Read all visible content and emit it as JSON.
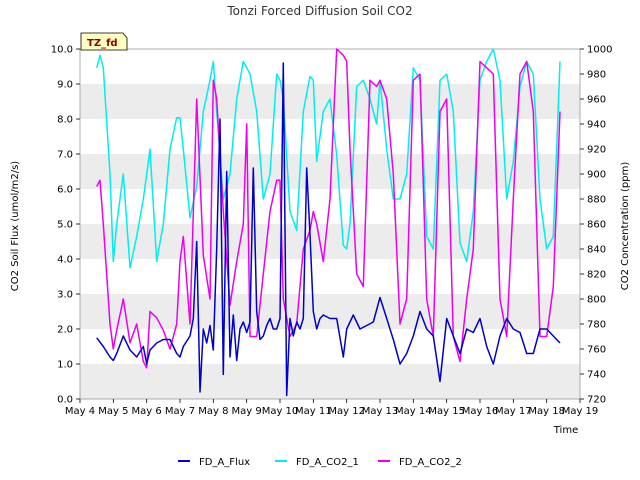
{
  "chart_data": {
    "type": "line",
    "title": "Tonzi Forced Diffusion Soil CO2",
    "xlabel": "Time",
    "ylabel_left": "CO2 Soil Flux (umol/m2/s)",
    "ylabel_right": "CO2 Concentration (ppm)",
    "annotation": "TZ_fd",
    "x_ticks": [
      "May 4",
      "May 5",
      "May 6",
      "May 7",
      "May 8",
      "May 9",
      "May 10",
      "May 11",
      "May 12",
      "May 13",
      "May 14",
      "May 15",
      "May 16",
      "May 17",
      "May 18",
      "May 19"
    ],
    "y_left_ticks": [
      "0.0",
      "1.0",
      "2.0",
      "3.0",
      "4.0",
      "5.0",
      "6.0",
      "7.0",
      "8.0",
      "9.0",
      "10.0"
    ],
    "y_right_ticks": [
      "720",
      "740",
      "760",
      "780",
      "800",
      "820",
      "840",
      "860",
      "880",
      "900",
      "920",
      "940",
      "960",
      "980",
      "1000"
    ],
    "ylim_left": [
      0,
      10
    ],
    "ylim_right": [
      720,
      1000
    ],
    "grid": "horizontal bands",
    "legend_position": "bottom-center",
    "series": [
      {
        "name": "FD_A_Flux",
        "axis": "left",
        "color": "#0000cc",
        "x": [
          4.5,
          4.7,
          4.9,
          5.0,
          5.1,
          5.3,
          5.5,
          5.7,
          5.9,
          6.0,
          6.1,
          6.3,
          6.5,
          6.7,
          6.9,
          7.0,
          7.1,
          7.3,
          7.4,
          7.5,
          7.6,
          7.7,
          7.8,
          7.9,
          8.0,
          8.1,
          8.2,
          8.3,
          8.4,
          8.5,
          8.6,
          8.7,
          8.8,
          8.9,
          9.0,
          9.1,
          9.2,
          9.3,
          9.4,
          9.5,
          9.6,
          9.7,
          9.8,
          9.9,
          10.0,
          10.1,
          10.2,
          10.3,
          10.4,
          10.5,
          10.6,
          10.7,
          10.8,
          10.9,
          11.0,
          11.1,
          11.2,
          11.3,
          11.5,
          11.7,
          11.9,
          12.0,
          12.2,
          12.4,
          12.6,
          12.8,
          13.0,
          13.2,
          13.4,
          13.6,
          13.8,
          14.0,
          14.2,
          14.4,
          14.6,
          14.8,
          15.0,
          15.2,
          15.4,
          15.6,
          15.8,
          16.0,
          16.2,
          16.4,
          16.6,
          16.8,
          17.0,
          17.2,
          17.4,
          17.6,
          17.8,
          18.0,
          18.2,
          18.4
        ],
        "y": [
          1.75,
          1.5,
          1.2,
          1.1,
          1.3,
          1.8,
          1.4,
          1.2,
          1.5,
          1.0,
          1.4,
          1.6,
          1.7,
          1.7,
          1.3,
          1.2,
          1.5,
          1.8,
          2.3,
          4.5,
          0.2,
          2.0,
          1.6,
          2.1,
          1.4,
          4.3,
          8.0,
          0.7,
          6.5,
          1.2,
          2.4,
          1.1,
          2.0,
          2.2,
          1.9,
          2.2,
          6.6,
          2.5,
          1.7,
          1.8,
          2.1,
          2.3,
          2.0,
          2.0,
          2.3,
          9.6,
          0.1,
          2.3,
          1.8,
          2.2,
          2.0,
          2.3,
          6.6,
          4.7,
          2.5,
          2.0,
          2.3,
          2.4,
          2.3,
          2.3,
          1.2,
          2.0,
          2.4,
          2.0,
          2.1,
          2.2,
          2.9,
          2.3,
          1.7,
          1.0,
          1.3,
          1.8,
          2.5,
          2.0,
          1.8,
          0.5,
          2.3,
          1.8,
          1.3,
          2.0,
          1.9,
          2.3,
          1.5,
          1.0,
          1.8,
          2.3,
          2.0,
          1.9,
          1.3,
          1.3,
          2.0,
          2.0,
          1.8,
          1.6
        ]
      },
      {
        "name": "FD_A_CO2_1",
        "axis": "right",
        "color": "#00eeee",
        "x": [
          4.5,
          4.6,
          4.7,
          4.9,
          5.0,
          5.1,
          5.3,
          5.5,
          5.7,
          5.9,
          6.0,
          6.1,
          6.3,
          6.5,
          6.7,
          6.9,
          7.0,
          7.1,
          7.3,
          7.5,
          7.7,
          7.9,
          8.0,
          8.1,
          8.3,
          8.5,
          8.7,
          8.9,
          9.0,
          9.1,
          9.3,
          9.5,
          9.7,
          9.9,
          10.0,
          10.1,
          10.3,
          10.5,
          10.7,
          10.9,
          11.0,
          11.1,
          11.3,
          11.5,
          11.7,
          11.9,
          12.0,
          12.1,
          12.3,
          12.5,
          12.7,
          12.9,
          13.0,
          13.2,
          13.4,
          13.6,
          13.8,
          14.0,
          14.2,
          14.4,
          14.6,
          14.8,
          15.0,
          15.2,
          15.4,
          15.6,
          15.8,
          16.0,
          16.2,
          16.4,
          16.6,
          16.8,
          17.0,
          17.2,
          17.4,
          17.6,
          17.8,
          18.0,
          18.2,
          18.4
        ],
        "y": [
          985,
          995,
          985,
          900,
          830,
          860,
          900,
          825,
          850,
          880,
          900,
          920,
          830,
          860,
          920,
          945,
          945,
          920,
          865,
          890,
          950,
          975,
          990,
          950,
          880,
          900,
          960,
          990,
          985,
          980,
          950,
          880,
          900,
          980,
          975,
          960,
          870,
          855,
          950,
          978,
          975,
          910,
          950,
          960,
          915,
          843,
          840,
          860,
          970,
          975,
          960,
          940,
          975,
          920,
          880,
          880,
          900,
          985,
          975,
          850,
          840,
          975,
          980,
          950,
          845,
          830,
          870,
          975,
          990,
          1000,
          975,
          880,
          910,
          970,
          990,
          980,
          880,
          840,
          850,
          990
        ]
      },
      {
        "name": "FD_A_CO2_2",
        "axis": "right",
        "color": "#ee00ee",
        "x": [
          4.5,
          4.6,
          4.7,
          4.9,
          5.0,
          5.1,
          5.3,
          5.5,
          5.7,
          5.9,
          6.0,
          6.1,
          6.3,
          6.5,
          6.7,
          6.9,
          7.0,
          7.1,
          7.3,
          7.5,
          7.7,
          7.9,
          8.0,
          8.1,
          8.3,
          8.5,
          8.7,
          8.9,
          9.0,
          9.1,
          9.3,
          9.5,
          9.7,
          9.9,
          10.0,
          10.1,
          10.3,
          10.5,
          10.7,
          10.9,
          11.0,
          11.1,
          11.3,
          11.5,
          11.7,
          11.9,
          12.0,
          12.1,
          12.3,
          12.5,
          12.7,
          12.9,
          13.0,
          13.2,
          13.4,
          13.6,
          13.8,
          14.0,
          14.2,
          14.4,
          14.6,
          14.8,
          15.0,
          15.2,
          15.4,
          15.6,
          15.8,
          16.0,
          16.2,
          16.4,
          16.6,
          16.8,
          17.0,
          17.2,
          17.4,
          17.6,
          17.8,
          18.0,
          18.2,
          18.4
        ],
        "y": [
          890,
          895,
          860,
          780,
          760,
          775,
          800,
          765,
          780,
          750,
          745,
          790,
          785,
          775,
          760,
          780,
          830,
          850,
          780,
          960,
          835,
          800,
          975,
          960,
          870,
          795,
          830,
          860,
          940,
          770,
          770,
          820,
          870,
          895,
          895,
          800,
          770,
          780,
          840,
          855,
          870,
          860,
          830,
          880,
          1000,
          995,
          990,
          920,
          820,
          810,
          975,
          970,
          975,
          960,
          900,
          780,
          800,
          975,
          980,
          800,
          770,
          950,
          960,
          770,
          750,
          800,
          840,
          990,
          985,
          980,
          800,
          770,
          880,
          980,
          990,
          950,
          770,
          770,
          810,
          950
        ]
      }
    ]
  }
}
